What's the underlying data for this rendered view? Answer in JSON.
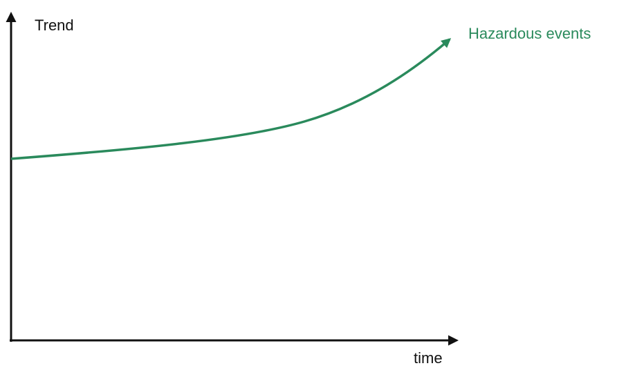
{
  "axes": {
    "y_label": "Trend",
    "x_label": "time"
  },
  "curve": {
    "label": "Hazardous events"
  }
}
